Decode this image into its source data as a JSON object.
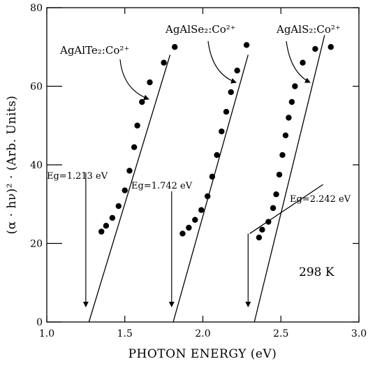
{
  "chart_data": {
    "type": "scatter",
    "title": "",
    "xlabel": "PHOTON ENERGY (eV)",
    "ylabel": "(α · hν)² · (Arb. Units)",
    "xlim": [
      1.0,
      3.0
    ],
    "ylim": [
      0,
      80
    ],
    "x_ticks": [
      "1.0",
      "1.5",
      "2.0",
      "2.5",
      "3.0"
    ],
    "y_ticks": [
      "0",
      "20",
      "40",
      "60",
      "80"
    ],
    "grid": false,
    "annotation": "298 K",
    "series": [
      {
        "name": "AgAlTe₂:Co²⁺",
        "points": [
          [
            1.35,
            23.0
          ],
          [
            1.38,
            24.5
          ],
          [
            1.42,
            26.5
          ],
          [
            1.46,
            29.5
          ],
          [
            1.5,
            33.5
          ],
          [
            1.53,
            38.5
          ],
          [
            1.56,
            44.5
          ],
          [
            1.58,
            50.0
          ],
          [
            1.61,
            56.0
          ],
          [
            1.66,
            61.0
          ],
          [
            1.75,
            66.0
          ],
          [
            1.82,
            70.0
          ]
        ],
        "fit_line": [
          [
            1.27,
            0.0
          ],
          [
            1.79,
            68.0
          ]
        ],
        "gap_label": "Eg=1.213 eV",
        "gap_marker_x": 1.25
      },
      {
        "name": "AgAlSe₂:Co²⁺",
        "points": [
          [
            1.87,
            22.5
          ],
          [
            1.91,
            24.0
          ],
          [
            1.95,
            26.0
          ],
          [
            1.99,
            28.5
          ],
          [
            2.03,
            32.0
          ],
          [
            2.06,
            37.0
          ],
          [
            2.09,
            42.5
          ],
          [
            2.12,
            48.5
          ],
          [
            2.15,
            53.5
          ],
          [
            2.18,
            58.5
          ],
          [
            2.22,
            64.0
          ],
          [
            2.28,
            70.5
          ]
        ],
        "fit_line": [
          [
            1.81,
            0.0
          ],
          [
            2.29,
            68.0
          ]
        ],
        "gap_label": "Eg=1.742 eV",
        "gap_marker_x": 1.8
      },
      {
        "name": "AgAlS₂:Co²⁺",
        "points": [
          [
            2.36,
            21.5
          ],
          [
            2.38,
            23.5
          ],
          [
            2.42,
            25.5
          ],
          [
            2.45,
            29.0
          ],
          [
            2.47,
            32.5
          ],
          [
            2.49,
            37.5
          ],
          [
            2.51,
            42.5
          ],
          [
            2.53,
            47.5
          ],
          [
            2.55,
            52.0
          ],
          [
            2.57,
            56.0
          ],
          [
            2.59,
            60.0
          ],
          [
            2.64,
            66.0
          ],
          [
            2.72,
            69.5
          ],
          [
            2.82,
            70.0
          ]
        ],
        "fit_line": [
          [
            2.33,
            0.0
          ],
          [
            2.78,
            73.0
          ]
        ],
        "gap_label": "Eg=2.242 eV",
        "gap_marker_x": 2.29,
        "baseline": [
          [
            2.3,
            22.5
          ],
          [
            2.77,
            35.0
          ]
        ]
      }
    ]
  }
}
